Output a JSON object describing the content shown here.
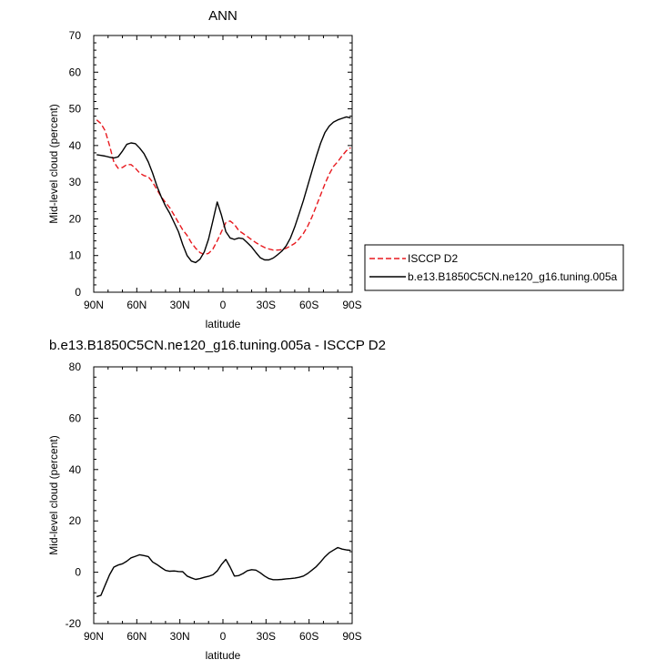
{
  "chart_data": [
    {
      "type": "line",
      "title": "ANN",
      "xlabel": "latitude",
      "ylabel": "Mid-level cloud (percent)",
      "xlim": [
        90,
        -90
      ],
      "ylim": [
        0,
        70
      ],
      "x_ticks": [
        90,
        60,
        30,
        0,
        -30,
        -60,
        -90
      ],
      "x_tick_labels": [
        "90N",
        "60N",
        "30N",
        "0",
        "30S",
        "60S",
        "90S"
      ],
      "y_ticks": [
        0,
        10,
        20,
        30,
        40,
        50,
        60,
        70
      ],
      "y_tick_labels": [
        "0",
        "10",
        "20",
        "30",
        "40",
        "50",
        "60",
        "70"
      ],
      "legend_position": "right",
      "series": [
        {
          "name": "ISCCP D2",
          "color": "#e8191e",
          "dash": "dashed",
          "x": [
            88,
            85,
            82,
            79,
            76,
            73,
            70,
            67,
            64,
            61,
            58,
            55,
            52,
            49,
            46,
            43,
            40,
            37,
            34,
            31,
            28,
            25,
            22,
            19,
            16,
            13,
            10,
            7,
            4,
            1,
            -2,
            -5,
            -8,
            -11,
            -14,
            -17,
            -20,
            -23,
            -26,
            -29,
            -32,
            -35,
            -38,
            -41,
            -44,
            -47,
            -50,
            -53,
            -56,
            -59,
            -62,
            -65,
            -68,
            -71,
            -74,
            -77,
            -80,
            -83,
            -86,
            -89
          ],
          "y": [
            47,
            46,
            44,
            40,
            35.5,
            33.8,
            34,
            34.8,
            34.8,
            33.8,
            32.5,
            31.8,
            31.5,
            30,
            28,
            26,
            24.5,
            23,
            21,
            19,
            17,
            15.5,
            13.5,
            12,
            10.8,
            10.3,
            10.6,
            11.8,
            14,
            16.5,
            19,
            19.4,
            18.5,
            16.8,
            16,
            15.2,
            14.3,
            13.5,
            12.8,
            12.2,
            11.8,
            11.5,
            11.5,
            11.6,
            12,
            12.6,
            13.3,
            14.5,
            16,
            18,
            20.5,
            23.5,
            26.5,
            29.5,
            32.2,
            34.3,
            35.6,
            37.2,
            38.6,
            39.4
          ]
        },
        {
          "name": "b.e13.B1850C5CN.ne120_g16.tuning.005a",
          "color": "#000000",
          "dash": "solid",
          "x": [
            88,
            85,
            82,
            79,
            76,
            73,
            70,
            67,
            64,
            61,
            58,
            55,
            52,
            49,
            46,
            43,
            40,
            37,
            34,
            31,
            28,
            25,
            22,
            19,
            16,
            13,
            10,
            7,
            4,
            1,
            -2,
            -5,
            -8,
            -11,
            -14,
            -17,
            -20,
            -23,
            -26,
            -29,
            -32,
            -35,
            -38,
            -41,
            -44,
            -47,
            -50,
            -53,
            -56,
            -59,
            -62,
            -65,
            -68,
            -71,
            -74,
            -77,
            -80,
            -83,
            -86,
            -89
          ],
          "y": [
            37.5,
            37.3,
            37.1,
            36.8,
            36.6,
            36.9,
            38.5,
            40.3,
            40.7,
            40.5,
            39.3,
            37.8,
            35.5,
            32.5,
            29,
            26,
            23.5,
            21.5,
            19,
            16.5,
            13,
            10,
            8.5,
            8.1,
            9,
            11,
            14.5,
            19.5,
            24.6,
            21,
            16.5,
            14.8,
            14.4,
            14.8,
            14.6,
            13.5,
            12.3,
            10.8,
            9.4,
            8.8,
            8.8,
            9.3,
            10.2,
            11.2,
            12.6,
            14.8,
            17.8,
            21.3,
            25,
            29,
            33,
            37,
            40.6,
            43.5,
            45.3,
            46.4,
            47,
            47.4,
            47.8,
            47.5
          ]
        }
      ]
    },
    {
      "type": "line",
      "title": "b.e13.B1850C5CN.ne120_g16.tuning.005a - ISCCP D2",
      "xlabel": "latitude",
      "ylabel": "Mid-level cloud (percent)",
      "xlim": [
        90,
        -90
      ],
      "ylim": [
        -20,
        80
      ],
      "x_ticks": [
        90,
        60,
        30,
        0,
        -30,
        -60,
        -90
      ],
      "x_tick_labels": [
        "90N",
        "60N",
        "30N",
        "0",
        "30S",
        "60S",
        "90S"
      ],
      "y_ticks": [
        -20,
        0,
        20,
        40,
        60,
        80
      ],
      "y_tick_labels": [
        "-20",
        "0",
        "20",
        "40",
        "60",
        "80"
      ],
      "series": [
        {
          "color": "#000000",
          "dash": "solid",
          "x": [
            88,
            85,
            82,
            79,
            76,
            73,
            70,
            67,
            64,
            61,
            58,
            55,
            52,
            49,
            46,
            43,
            40,
            37,
            34,
            31,
            28,
            25,
            22,
            19,
            16,
            13,
            10,
            7,
            4,
            1,
            -2,
            -5,
            -8,
            -11,
            -14,
            -17,
            -20,
            -23,
            -26,
            -29,
            -32,
            -35,
            -38,
            -41,
            -44,
            -47,
            -50,
            -53,
            -56,
            -59,
            -62,
            -65,
            -68,
            -71,
            -74,
            -77,
            -80,
            -83,
            -86,
            -89
          ],
          "y": [
            -9.5,
            -9,
            -5,
            -1,
            2,
            2.8,
            3.3,
            4.3,
            5.6,
            6.2,
            6.8,
            6.5,
            6.1,
            4,
            3,
            1.8,
            0.7,
            0.4,
            0.5,
            0.3,
            0.2,
            -1.5,
            -2.2,
            -2.8,
            -2.5,
            -2,
            -1.6,
            -1,
            0.5,
            3,
            5,
            2,
            -1.5,
            -1.3,
            -0.5,
            0.6,
            1,
            0.8,
            -0.2,
            -1.5,
            -2.5,
            -2.9,
            -2.9,
            -2.8,
            -2.6,
            -2.5,
            -2.3,
            -2,
            -1.5,
            -0.5,
            0.8,
            2.2,
            4,
            6,
            7.6,
            8.6,
            9.6,
            9,
            8.7,
            8.5
          ]
        }
      ]
    }
  ]
}
